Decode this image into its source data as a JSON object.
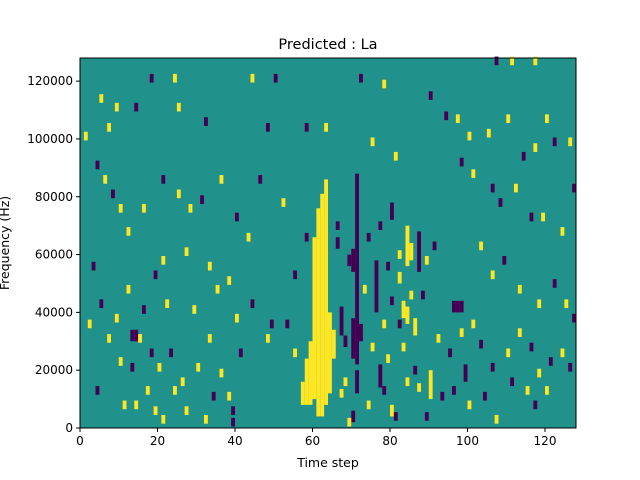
{
  "chart_data": {
    "type": "heatmap",
    "title": "Predicted : La",
    "xlabel": "Time step",
    "ylabel": "Frequency (Hz)",
    "xlim": [
      0,
      128
    ],
    "ylim": [
      0,
      128000
    ],
    "xticks": [
      0,
      20,
      40,
      60,
      80,
      100,
      120
    ],
    "yticks": [
      0,
      20000,
      40000,
      60000,
      80000,
      100000,
      120000
    ],
    "ytick_labels": [
      "0",
      "20000",
      "40000",
      "60000",
      "80000",
      "100000",
      "120000"
    ],
    "bin_size": {
      "time": 1,
      "frequency": 1000
    },
    "colors": {
      "background": "#21918c",
      "high": "#fde725",
      "low": "#440154"
    },
    "background_value": 0,
    "value_colors": {
      "-1": "#440154",
      "0": "#21918c",
      "1": "#fde725"
    },
    "vertical_runs": [
      {
        "t": 61,
        "value": 1,
        "f_range": [
          4000,
          76000
        ]
      },
      {
        "t": 62,
        "value": 1,
        "f_range": [
          4000,
          81000
        ]
      },
      {
        "t": 63,
        "value": 1,
        "f_range": [
          8000,
          86000
        ]
      },
      {
        "t": 60,
        "value": 1,
        "f_range": [
          10000,
          66000
        ]
      },
      {
        "t": 64,
        "value": 1,
        "f_range": [
          12000,
          40000
        ]
      },
      {
        "t": 65,
        "value": 1,
        "f_range": [
          24000,
          34000
        ]
      },
      {
        "t": 59,
        "value": 1,
        "f_range": [
          8000,
          30000
        ]
      },
      {
        "t": 58,
        "value": 1,
        "f_range": [
          8000,
          24000
        ]
      },
      {
        "t": 57,
        "value": 1,
        "f_range": [
          8000,
          16000
        ]
      },
      {
        "t": 71,
        "value": -1,
        "f_range": [
          22000,
          88000
        ]
      },
      {
        "t": 70,
        "value": -1,
        "f_range": [
          24000,
          38000
        ]
      },
      {
        "t": 70,
        "value": -1,
        "f_range": [
          54000,
          62000
        ]
      },
      {
        "t": 71,
        "value": -1,
        "f_range": [
          12000,
          20000
        ]
      },
      {
        "t": 67,
        "value": -1,
        "f_range": [
          32000,
          42000
        ]
      },
      {
        "t": 68,
        "value": -1,
        "f_range": [
          28000,
          32000
        ]
      },
      {
        "t": 72,
        "value": -1,
        "f_range": [
          30000,
          36000
        ]
      },
      {
        "t": 66,
        "value": -1,
        "f_range": [
          62000,
          66000
        ]
      },
      {
        "t": 69,
        "value": -1,
        "f_range": [
          56000,
          60000
        ]
      },
      {
        "t": 70,
        "value": -1,
        "f_range": [
          2000,
          6000
        ]
      },
      {
        "t": 80,
        "value": -1,
        "f_range": [
          72000,
          78000
        ]
      },
      {
        "t": 76,
        "value": -1,
        "f_range": [
          40000,
          58000
        ]
      },
      {
        "t": 77,
        "value": -1,
        "f_range": [
          14000,
          22000
        ]
      },
      {
        "t": 87,
        "value": -1,
        "f_range": [
          54000,
          68000
        ]
      },
      {
        "t": 86,
        "value": 1,
        "f_range": [
          32000,
          38000
        ]
      },
      {
        "t": 83,
        "value": 1,
        "f_range": [
          38000,
          44000
        ]
      },
      {
        "t": 84,
        "value": 1,
        "f_range": [
          36000,
          42000
        ]
      },
      {
        "t": 82,
        "value": 1,
        "f_range": [
          50000,
          54000
        ]
      },
      {
        "t": 80,
        "value": 1,
        "f_range": [
          4000,
          8000
        ]
      },
      {
        "t": 84,
        "value": 1,
        "f_range": [
          56000,
          70000
        ]
      },
      {
        "t": 85,
        "value": 1,
        "f_range": [
          58000,
          64000
        ]
      },
      {
        "t": 90,
        "value": 1,
        "f_range": [
          10000,
          20000
        ]
      },
      {
        "t": 99,
        "value": -1,
        "f_range": [
          16000,
          22000
        ]
      },
      {
        "t": 96,
        "value": -1,
        "f_range": [
          40000,
          44000
        ]
      },
      {
        "t": 97,
        "value": -1,
        "f_range": [
          40000,
          44000
        ]
      },
      {
        "t": 98,
        "value": -1,
        "f_range": [
          40000,
          44000
        ]
      },
      {
        "t": 13,
        "value": -1,
        "f_range": [
          30000,
          34000
        ]
      },
      {
        "t": 14,
        "value": -1,
        "f_range": [
          30000,
          34000
        ]
      }
    ],
    "cells": [
      {
        "t": 1,
        "f": 101000,
        "value": 1
      },
      {
        "t": 5,
        "f": 114000,
        "value": 1
      },
      {
        "t": 7,
        "f": 104000,
        "value": 1
      },
      {
        "t": 9,
        "f": 111000,
        "value": 1
      },
      {
        "t": 14,
        "f": 111000,
        "value": -1
      },
      {
        "t": 18,
        "f": 121000,
        "value": -1
      },
      {
        "t": 24,
        "f": 121000,
        "value": 1
      },
      {
        "t": 25,
        "f": 111000,
        "value": 1
      },
      {
        "t": 32,
        "f": 106000,
        "value": -1
      },
      {
        "t": 44,
        "f": 121000,
        "value": 1
      },
      {
        "t": 48,
        "f": 104000,
        "value": -1
      },
      {
        "t": 50,
        "f": 121000,
        "value": -1
      },
      {
        "t": 58,
        "f": 104000,
        "value": -1
      },
      {
        "t": 63,
        "f": 104000,
        "value": 1
      },
      {
        "t": 72,
        "f": 121000,
        "value": -1
      },
      {
        "t": 75,
        "f": 99000,
        "value": 1
      },
      {
        "t": 78,
        "f": 119000,
        "value": 1
      },
      {
        "t": 81,
        "f": 94000,
        "value": 1
      },
      {
        "t": 90,
        "f": 115000,
        "value": -1
      },
      {
        "t": 94,
        "f": 108000,
        "value": -1
      },
      {
        "t": 97,
        "f": 107000,
        "value": 1
      },
      {
        "t": 100,
        "f": 101000,
        "value": 1
      },
      {
        "t": 105,
        "f": 102000,
        "value": 1
      },
      {
        "t": 110,
        "f": 107000,
        "value": 1
      },
      {
        "t": 114,
        "f": 94000,
        "value": -1
      },
      {
        "t": 117,
        "f": 97000,
        "value": 1
      },
      {
        "t": 120,
        "f": 107000,
        "value": 1
      },
      {
        "t": 122,
        "f": 99000,
        "value": -1
      },
      {
        "t": 126,
        "f": 99000,
        "value": 1
      },
      {
        "t": 107,
        "f": 127000,
        "value": -1
      },
      {
        "t": 111,
        "f": 127000,
        "value": 1
      },
      {
        "t": 117,
        "f": 127000,
        "value": 1
      },
      {
        "t": 4,
        "f": 91000,
        "value": -1
      },
      {
        "t": 6,
        "f": 86000,
        "value": 1
      },
      {
        "t": 8,
        "f": 81000,
        "value": -1
      },
      {
        "t": 10,
        "f": 76000,
        "value": 1
      },
      {
        "t": 12,
        "f": 68000,
        "value": 1
      },
      {
        "t": 16,
        "f": 76000,
        "value": 1
      },
      {
        "t": 21,
        "f": 86000,
        "value": -1
      },
      {
        "t": 25,
        "f": 81000,
        "value": 1
      },
      {
        "t": 28,
        "f": 76000,
        "value": 1
      },
      {
        "t": 31,
        "f": 79000,
        "value": -1
      },
      {
        "t": 36,
        "f": 86000,
        "value": 1
      },
      {
        "t": 40,
        "f": 73000,
        "value": -1
      },
      {
        "t": 43,
        "f": 66000,
        "value": 1
      },
      {
        "t": 46,
        "f": 86000,
        "value": -1
      },
      {
        "t": 52,
        "f": 78000,
        "value": 1
      },
      {
        "t": 58,
        "f": 66000,
        "value": -1
      },
      {
        "t": 98,
        "f": 92000,
        "value": -1
      },
      {
        "t": 101,
        "f": 88000,
        "value": 1
      },
      {
        "t": 106,
        "f": 83000,
        "value": -1
      },
      {
        "t": 108,
        "f": 78000,
        "value": -1
      },
      {
        "t": 112,
        "f": 83000,
        "value": 1
      },
      {
        "t": 116,
        "f": 73000,
        "value": -1
      },
      {
        "t": 119,
        "f": 73000,
        "value": 1
      },
      {
        "t": 124,
        "f": 68000,
        "value": 1
      },
      {
        "t": 127,
        "f": 83000,
        "value": -1
      },
      {
        "t": 3,
        "f": 56000,
        "value": -1
      },
      {
        "t": 5,
        "f": 43000,
        "value": -1
      },
      {
        "t": 9,
        "f": 38000,
        "value": 1
      },
      {
        "t": 12,
        "f": 48000,
        "value": 1
      },
      {
        "t": 16,
        "f": 41000,
        "value": -1
      },
      {
        "t": 19,
        "f": 53000,
        "value": -1
      },
      {
        "t": 21,
        "f": 58000,
        "value": 1
      },
      {
        "t": 22,
        "f": 43000,
        "value": 1
      },
      {
        "t": 27,
        "f": 61000,
        "value": 1
      },
      {
        "t": 29,
        "f": 41000,
        "value": 1
      },
      {
        "t": 33,
        "f": 56000,
        "value": 1
      },
      {
        "t": 35,
        "f": 48000,
        "value": 1
      },
      {
        "t": 38,
        "f": 51000,
        "value": 1
      },
      {
        "t": 40,
        "f": 38000,
        "value": 1
      },
      {
        "t": 44,
        "f": 43000,
        "value": -1
      },
      {
        "t": 49,
        "f": 36000,
        "value": -1
      },
      {
        "t": 55,
        "f": 53000,
        "value": -1
      },
      {
        "t": 103,
        "f": 63000,
        "value": 1
      },
      {
        "t": 106,
        "f": 53000,
        "value": 1
      },
      {
        "t": 109,
        "f": 58000,
        "value": -1
      },
      {
        "t": 113,
        "f": 48000,
        "value": 1
      },
      {
        "t": 118,
        "f": 43000,
        "value": 1
      },
      {
        "t": 122,
        "f": 50000,
        "value": -1
      },
      {
        "t": 125,
        "f": 43000,
        "value": 1
      },
      {
        "t": 127,
        "f": 38000,
        "value": -1
      },
      {
        "t": 2,
        "f": 36000,
        "value": 1
      },
      {
        "t": 7,
        "f": 31000,
        "value": 1
      },
      {
        "t": 10,
        "f": 23000,
        "value": 1
      },
      {
        "t": 13,
        "f": 21000,
        "value": -1
      },
      {
        "t": 15,
        "f": 31000,
        "value": 1
      },
      {
        "t": 18,
        "f": 26000,
        "value": -1
      },
      {
        "t": 20,
        "f": 21000,
        "value": 1
      },
      {
        "t": 23,
        "f": 26000,
        "value": -1
      },
      {
        "t": 26,
        "f": 16000,
        "value": 1
      },
      {
        "t": 30,
        "f": 21000,
        "value": 1
      },
      {
        "t": 33,
        "f": 31000,
        "value": 1
      },
      {
        "t": 36,
        "f": 19000,
        "value": 1
      },
      {
        "t": 38,
        "f": 11000,
        "value": 1
      },
      {
        "t": 41,
        "f": 26000,
        "value": -1
      },
      {
        "t": 48,
        "f": 31000,
        "value": 1
      },
      {
        "t": 53,
        "f": 36000,
        "value": -1
      },
      {
        "t": 55,
        "f": 26000,
        "value": 1
      },
      {
        "t": 92,
        "f": 31000,
        "value": 1
      },
      {
        "t": 95,
        "f": 26000,
        "value": -1
      },
      {
        "t": 98,
        "f": 33000,
        "value": 1
      },
      {
        "t": 101,
        "f": 36000,
        "value": 1
      },
      {
        "t": 103,
        "f": 29000,
        "value": -1
      },
      {
        "t": 106,
        "f": 21000,
        "value": -1
      },
      {
        "t": 110,
        "f": 26000,
        "value": 1
      },
      {
        "t": 113,
        "f": 33000,
        "value": 1
      },
      {
        "t": 116,
        "f": 28000,
        "value": -1
      },
      {
        "t": 118,
        "f": 19000,
        "value": 1
      },
      {
        "t": 121,
        "f": 23000,
        "value": -1
      },
      {
        "t": 124,
        "f": 26000,
        "value": 1
      },
      {
        "t": 126,
        "f": 21000,
        "value": -1
      },
      {
        "t": 4,
        "f": 13000,
        "value": -1
      },
      {
        "t": 11,
        "f": 8000,
        "value": 1
      },
      {
        "t": 14,
        "f": 8000,
        "value": 1
      },
      {
        "t": 17,
        "f": 13000,
        "value": 1
      },
      {
        "t": 19,
        "f": 6000,
        "value": 1
      },
      {
        "t": 21,
        "f": 3000,
        "value": 1
      },
      {
        "t": 24,
        "f": 13000,
        "value": 1
      },
      {
        "t": 27,
        "f": 6000,
        "value": 1
      },
      {
        "t": 32,
        "f": 3000,
        "value": 1
      },
      {
        "t": 34,
        "f": 11000,
        "value": -1
      },
      {
        "t": 39,
        "f": 6000,
        "value": -1
      },
      {
        "t": 39,
        "f": 2000,
        "value": -1
      },
      {
        "t": 93,
        "f": 11000,
        "value": -1
      },
      {
        "t": 96,
        "f": 13000,
        "value": -1
      },
      {
        "t": 100,
        "f": 8000,
        "value": 1
      },
      {
        "t": 104,
        "f": 11000,
        "value": -1
      },
      {
        "t": 107,
        "f": 3000,
        "value": 1
      },
      {
        "t": 111,
        "f": 16000,
        "value": -1
      },
      {
        "t": 115,
        "f": 13000,
        "value": 1
      },
      {
        "t": 117,
        "f": 8000,
        "value": -1
      },
      {
        "t": 120,
        "f": 13000,
        "value": 1
      },
      {
        "t": 74,
        "f": 66000,
        "value": -1
      },
      {
        "t": 73,
        "f": 48000,
        "value": 1
      },
      {
        "t": 75,
        "f": 28000,
        "value": 1
      },
      {
        "t": 78,
        "f": 13000,
        "value": -1
      },
      {
        "t": 82,
        "f": 36000,
        "value": -1
      },
      {
        "t": 86,
        "f": 20000,
        "value": -1
      },
      {
        "t": 88,
        "f": 46000,
        "value": -1
      },
      {
        "t": 89,
        "f": 58000,
        "value": 1
      },
      {
        "t": 91,
        "f": 63000,
        "value": -1
      },
      {
        "t": 68,
        "f": 16000,
        "value": 1
      },
      {
        "t": 74,
        "f": 8000,
        "value": 1
      },
      {
        "t": 79,
        "f": 24000,
        "value": 1
      },
      {
        "t": 82,
        "f": 60000,
        "value": 1
      },
      {
        "t": 85,
        "f": 46000,
        "value": 1
      },
      {
        "t": 77,
        "f": 70000,
        "value": -1
      },
      {
        "t": 79,
        "f": 56000,
        "value": -1
      },
      {
        "t": 83,
        "f": 28000,
        "value": 1
      },
      {
        "t": 87,
        "f": 14000,
        "value": 1
      },
      {
        "t": 89,
        "f": 4000,
        "value": -1
      },
      {
        "t": 67,
        "f": 12000,
        "value": 1
      },
      {
        "t": 66,
        "f": 70000,
        "value": -1
      },
      {
        "t": 69,
        "f": 2000,
        "value": 1
      },
      {
        "t": 81,
        "f": 4000,
        "value": -1
      },
      {
        "t": 84,
        "f": 16000,
        "value": 1
      },
      {
        "t": 78,
        "f": 36000,
        "value": 1
      },
      {
        "t": 80,
        "f": 44000,
        "value": -1
      }
    ]
  }
}
